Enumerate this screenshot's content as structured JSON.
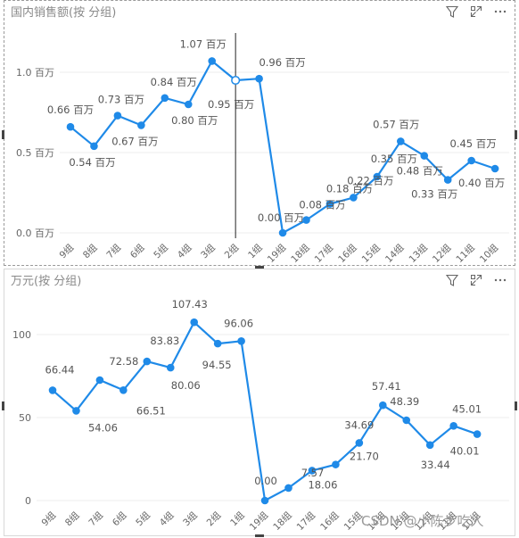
{
  "top_panel": {
    "title": "国内销售额(按 分组)"
  },
  "bottom_panel": {
    "title": "万元(按 分组)"
  },
  "toolbar": {
    "filter_icon": "filter-icon",
    "focus_icon": "focus-mode-icon",
    "more_icon": "more-options-icon"
  },
  "watermark": "CSDN @小陈步吃人",
  "colors": {
    "series": "#1f8ae8",
    "grid": "#ececec",
    "text": "#666666",
    "label": "#555555"
  },
  "chart_data": [
    {
      "type": "line",
      "title": "国内销售额(按 分组)",
      "categories": [
        "9组",
        "8组",
        "7组",
        "6组",
        "5组",
        "4组",
        "3组",
        "2组",
        "1组",
        "19组",
        "18组",
        "17组",
        "16组",
        "15组",
        "14组",
        "13组",
        "12组",
        "11组",
        "10组"
      ],
      "values": [
        0.66,
        0.54,
        0.73,
        0.67,
        0.84,
        0.8,
        1.07,
        0.95,
        0.96,
        0.0,
        0.08,
        0.18,
        0.22,
        0.35,
        0.57,
        0.48,
        0.33,
        0.45,
        0.4
      ],
      "data_labels": [
        "0.66 百万",
        "0.54 百万",
        "0.73 百万",
        "0.67 百万",
        "0.84 百万",
        "0.80 百万",
        "1.07 百万",
        "0.95 百万",
        "0.96 百万",
        "0.00 百万",
        "0.08 百万",
        "0.18 百万",
        "0.22 百万",
        "0.35 百万",
        "0.57 百万",
        "0.48 百万",
        "0.33 百万",
        "0.45 百万",
        "0.40 百万"
      ],
      "yticks": [
        "0.0 百万",
        "0.5 百万",
        "1.0 百万"
      ],
      "ytick_values": [
        0,
        0.5,
        1.0
      ],
      "ylim": [
        0,
        1.2
      ],
      "grid": true,
      "hover_category": "2组"
    },
    {
      "type": "line",
      "title": "万元(按 分组)",
      "categories": [
        "9组",
        "8组",
        "7组",
        "6组",
        "5组",
        "4组",
        "3组",
        "2组",
        "1组",
        "19组",
        "18组",
        "17组",
        "16组",
        "15组",
        "14组",
        "13组",
        "12组",
        "11组",
        "10组"
      ],
      "values": [
        66.44,
        54.06,
        72.58,
        66.51,
        83.83,
        80.06,
        107.43,
        94.55,
        96.06,
        0.0,
        7.57,
        18.06,
        21.7,
        34.69,
        57.41,
        48.39,
        33.44,
        45.01,
        40.01
      ],
      "data_labels": [
        "66.44",
        "54.06",
        "72.58",
        "66.51",
        "83.83",
        "80.06",
        "107.43",
        "94.55",
        "96.06",
        "0.00",
        "7.57",
        "18.06",
        "21.70",
        "34.69",
        "57.41",
        "48.39",
        "33.44",
        "45.01",
        "40.01"
      ],
      "yticks": [
        "0",
        "50",
        "100"
      ],
      "ytick_values": [
        0,
        50,
        100
      ],
      "ylim": [
        0,
        115
      ],
      "grid": true
    }
  ]
}
